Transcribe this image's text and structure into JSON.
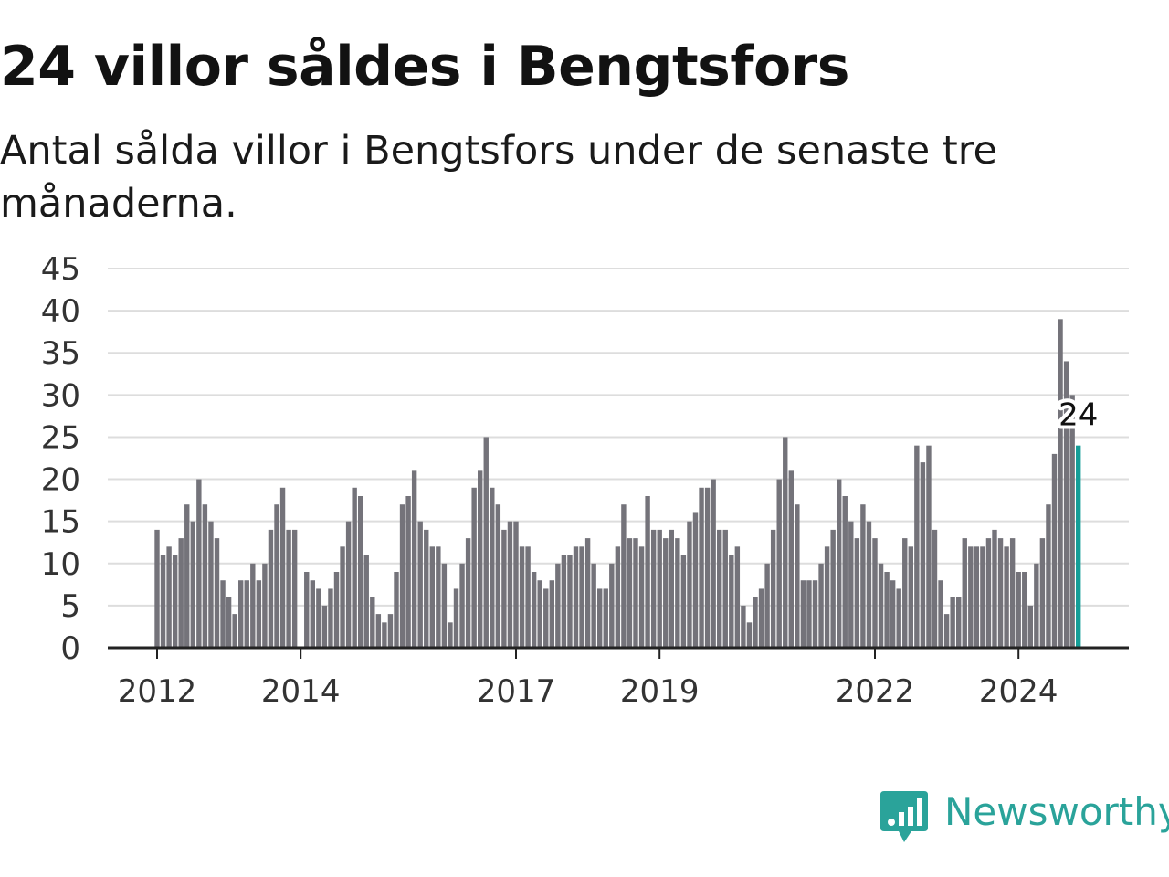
{
  "title": "24 villor såldes i Bengtsfors",
  "subtitle": "Antal sålda villor i Bengtsfors under de senaste tre månaderna.",
  "brand": {
    "name": "Newsworthy",
    "color": "#2aa39a",
    "icon": "chart-speech-bubble-icon"
  },
  "colors": {
    "bar": "#74737a",
    "highlight": "#159e98",
    "grid": "#dddddd",
    "axis": "#222222"
  },
  "chart_data": {
    "type": "bar",
    "title": "24 villor såldes i Bengtsfors",
    "subtitle": "Antal sålda villor i Bengtsfors under de senaste tre månaderna.",
    "xlabel": "",
    "ylabel": "",
    "ylim": [
      0,
      45
    ],
    "yticks": [
      0,
      5,
      10,
      15,
      20,
      25,
      30,
      35,
      40,
      45
    ],
    "xtick_labels": [
      "2012",
      "2014",
      "2017",
      "2019",
      "2022",
      "2024"
    ],
    "grid": true,
    "legend": "none",
    "first_period": "2012-01",
    "frequency": "monthly",
    "values": [
      14,
      11,
      12,
      11,
      13,
      17,
      15,
      20,
      17,
      15,
      13,
      8,
      6,
      4,
      8,
      8,
      10,
      8,
      10,
      14,
      17,
      19,
      14,
      14,
      0,
      9,
      8,
      7,
      5,
      7,
      9,
      12,
      15,
      19,
      18,
      11,
      6,
      4,
      3,
      4,
      9,
      17,
      18,
      21,
      15,
      14,
      12,
      12,
      10,
      3,
      7,
      10,
      13,
      19,
      21,
      25,
      19,
      17,
      14,
      15,
      15,
      12,
      12,
      9,
      8,
      7,
      8,
      10,
      11,
      11,
      12,
      12,
      13,
      10,
      7,
      7,
      10,
      12,
      17,
      13,
      13,
      12,
      18,
      14,
      14,
      13,
      14,
      13,
      11,
      15,
      16,
      19,
      19,
      20,
      14,
      14,
      11,
      12,
      5,
      3,
      6,
      7,
      10,
      14,
      20,
      25,
      21,
      17,
      8,
      8,
      8,
      10,
      12,
      14,
      20,
      18,
      15,
      13,
      17,
      15,
      13,
      10,
      9,
      8,
      7,
      13,
      12,
      24,
      22,
      24,
      14,
      8,
      4,
      6,
      6,
      13,
      12,
      12,
      12,
      13,
      14,
      13,
      12,
      13,
      9,
      9,
      5,
      10,
      13,
      17,
      23,
      39,
      34,
      30,
      24
    ],
    "highlight": {
      "value": 24,
      "label": "24"
    }
  }
}
